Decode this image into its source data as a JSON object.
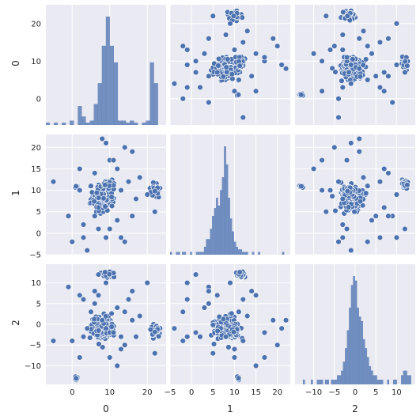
{
  "chart_data": {
    "type": "pairplot",
    "variables": [
      "0",
      "1",
      "2"
    ],
    "colors": {
      "background": "#eaeaf2",
      "grid": "#ffffff",
      "marker": "#4c72b0",
      "marker_edge": "#ffffff",
      "bar": "#4c72b0"
    },
    "axes": {
      "0": {
        "range": [
          -7,
          25
        ],
        "ticks": [
          0,
          10,
          20
        ],
        "tick_labels": [
          "0",
          "10",
          "20"
        ]
      },
      "1": {
        "range": [
          -5,
          23
        ],
        "ticks": [
          -5,
          0,
          5,
          10,
          15,
          20
        ],
        "tick_labels": [
          "−5",
          "0",
          "5",
          "10",
          "15",
          "20"
        ]
      },
      "2": {
        "range": [
          -14.5,
          14.5
        ],
        "ticks": [
          -10,
          -5,
          0,
          5,
          10
        ],
        "tick_labels": [
          "−10",
          "−5",
          "0",
          "5",
          "10"
        ]
      }
    },
    "diag_hist": {
      "0": {
        "range": [
          -7,
          25
        ],
        "bins": 30,
        "counts": [
          1,
          0,
          1,
          0,
          1,
          0,
          2,
          0,
          9,
          4,
          1,
          2,
          10,
          20,
          38,
          52,
          38,
          30,
          2,
          2,
          1,
          2,
          1,
          0,
          1,
          2,
          30,
          20,
          0,
          0
        ]
      },
      "1": {
        "range": [
          -5,
          23
        ],
        "bins": 60,
        "counts": [
          1,
          0,
          0,
          1,
          1,
          0,
          1,
          1,
          0,
          0,
          1,
          0,
          0,
          1,
          1,
          1,
          1,
          3,
          6,
          6,
          10,
          15,
          18,
          22,
          19,
          25,
          30,
          42,
          35,
          22,
          14,
          9,
          5,
          3,
          2,
          2,
          1,
          1,
          1,
          0,
          0,
          1,
          0,
          0,
          1,
          0,
          0,
          0,
          0,
          0,
          0,
          0,
          0,
          0,
          0,
          0,
          1,
          0,
          0,
          0
        ]
      },
      "2": {
        "range": [
          -14.5,
          14.5
        ],
        "bins": 60,
        "counts": [
          0,
          0,
          0,
          0,
          1,
          0,
          0,
          0,
          1,
          0,
          0,
          1,
          1,
          1,
          0,
          1,
          1,
          0,
          1,
          1,
          1,
          2,
          2,
          3,
          5,
          8,
          12,
          17,
          22,
          24,
          23,
          17,
          15,
          14,
          10,
          8,
          6,
          4,
          3,
          2,
          2,
          1,
          1,
          1,
          0,
          0,
          1,
          0,
          0,
          1,
          1,
          0,
          0,
          2,
          3,
          3,
          2,
          2,
          0,
          0
        ]
      }
    },
    "clusters": [
      {
        "center": [
          8,
          8,
          -1
        ],
        "spread": [
          1.5,
          1.3,
          1.3
        ],
        "count": 170
      },
      {
        "center": [
          10,
          11.5,
          11.8
        ],
        "spread": [
          0.7,
          0.4,
          0.4
        ],
        "count": 28
      },
      {
        "center": [
          22,
          10,
          -1.6
        ],
        "spread": [
          0.7,
          0.8,
          0.7
        ],
        "count": 30
      },
      {
        "center": [
          1,
          11,
          -13
        ],
        "spread": [
          0.3,
          0.3,
          0.3
        ],
        "count": 6
      }
    ],
    "outliers": [
      [
        8,
        22,
        1
      ],
      [
        9,
        21,
        -1
      ],
      [
        10,
        1,
        -2
      ],
      [
        0,
        -2,
        -4
      ],
      [
        20,
        9,
        10
      ],
      [
        15,
        12,
        6
      ],
      [
        22,
        5,
        -7
      ],
      [
        -5,
        12,
        -4
      ],
      [
        12,
        3,
        4
      ],
      [
        6,
        14,
        8
      ],
      [
        3,
        2,
        -3
      ],
      [
        10,
        17,
        -8
      ],
      [
        14,
        -2,
        3
      ],
      [
        2,
        15,
        7
      ],
      [
        -1,
        4,
        9
      ],
      [
        17,
        8,
        -3
      ],
      [
        6,
        4,
        5
      ],
      [
        12,
        15,
        -10
      ],
      [
        5,
        11,
        3
      ],
      [
        16,
        4,
        8
      ],
      [
        11,
        17,
        -2
      ],
      [
        3,
        -1,
        6
      ],
      [
        13,
        10,
        -6
      ],
      [
        7,
        6,
        7
      ],
      [
        18,
        13,
        2
      ],
      [
        4,
        -4,
        -1
      ],
      [
        9,
        -1,
        10
      ],
      [
        14,
        20,
        -5
      ],
      [
        2,
        10,
        -8
      ],
      [
        13,
        -1,
        -3
      ],
      [
        7,
        1,
        12
      ],
      [
        16,
        19,
        1
      ]
    ]
  }
}
